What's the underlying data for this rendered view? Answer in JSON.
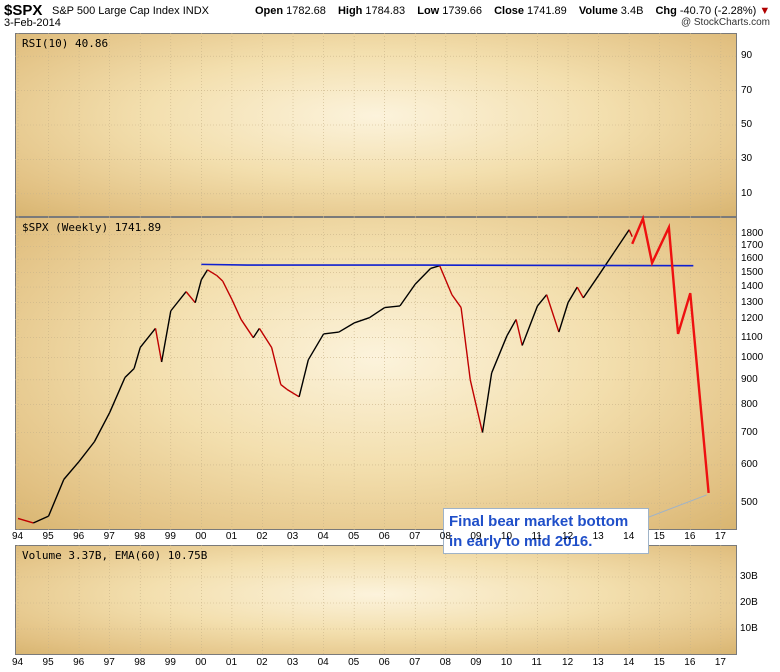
{
  "header": {
    "symbol": "$SPX",
    "name": "S&P 500 Large Cap Index",
    "exchange": "INDX",
    "date": "3-Feb-2014",
    "credit": "@ StockCharts.com",
    "quote": {
      "open_label": "Open",
      "open": "1782.68",
      "high_label": "High",
      "high": "1784.83",
      "low_label": "Low",
      "low": "1739.66",
      "close_label": "Close",
      "close": "1741.89",
      "volume_label": "Volume",
      "volume": "3.4B",
      "chg_label": "Chg",
      "chg": "-40.70 (-2.28%)",
      "chg_arrow": "▼"
    }
  },
  "panels": {
    "rsi_label": "RSI(10) 40.86",
    "price_label": "$SPX (Weekly) 1741.89",
    "volume_label": "Volume 3.37B, EMA(60) 10.75B"
  },
  "callout": {
    "line1": "Final bear market bottom",
    "line2": "in early to mid 2016."
  },
  "colors": {
    "price_line": "#000000",
    "price_down": "#c00000",
    "resistance": "#1020d0",
    "projection": "#ee1010",
    "callout_text": "#1f4fc9"
  },
  "chart_data": {
    "type": "line",
    "title": "$SPX (Weekly)",
    "xlabel": "",
    "ylabel": "",
    "x_ticks": [
      "94",
      "95",
      "96",
      "97",
      "98",
      "99",
      "00",
      "01",
      "02",
      "03",
      "04",
      "05",
      "06",
      "07",
      "08",
      "09",
      "10",
      "11",
      "12",
      "13",
      "14",
      "15",
      "16",
      "17"
    ],
    "y_ticks": [
      500,
      600,
      700,
      800,
      900,
      1000,
      1100,
      1200,
      1300,
      1400,
      1500,
      1600,
      1700,
      1800
    ],
    "ylim": [
      440,
      1900
    ],
    "xlim": [
      1994.0,
      2017.3
    ],
    "scale": "log",
    "rsi_ticks": [
      10,
      30,
      50,
      70,
      90
    ],
    "volume_ticks": [
      "10B",
      "20B",
      "30B"
    ],
    "series": [
      {
        "x": [
          1994.0,
          1994.5,
          1995.0,
          1995.5,
          1996.0,
          1996.5,
          1997.0,
          1997.5,
          1997.8,
          1998.0,
          1998.5,
          1998.7,
          1999.0,
          1999.5,
          1999.8,
          2000.0,
          2000.2,
          2000.5,
          2000.7,
          2001.0,
          2001.3,
          2001.7,
          2001.9,
          2002.3,
          2002.6,
          2002.8,
          2003.2,
          2003.5,
          2004.0,
          2004.5,
          2005.0,
          2005.5,
          2006.0,
          2006.5,
          2007.0,
          2007.5,
          2007.8,
          2008.2,
          2008.5,
          2008.8,
          2009.2,
          2009.5,
          2010.0,
          2010.3,
          2010.5,
          2011.0,
          2011.3,
          2011.7,
          2012.0,
          2012.3,
          2012.5,
          2013.0,
          2013.5,
          2014.0,
          2014.1
        ],
        "values": [
          465,
          455,
          470,
          560,
          610,
          670,
          770,
          910,
          950,
          1050,
          1150,
          980,
          1250,
          1370,
          1300,
          1450,
          1520,
          1480,
          1440,
          1320,
          1200,
          1100,
          1150,
          1050,
          880,
          860,
          830,
          990,
          1120,
          1130,
          1180,
          1210,
          1270,
          1280,
          1420,
          1530,
          1550,
          1350,
          1270,
          900,
          700,
          930,
          1110,
          1200,
          1060,
          1280,
          1350,
          1130,
          1300,
          1400,
          1330,
          1480,
          1650,
          1840,
          1780
        ]
      },
      {
        "name": "",
        "x": [
          2000.0,
          2001.5,
          2007.0,
          2016.1
        ],
        "values": [
          1560,
          1555,
          1555,
          1550
        ]
      },
      {
        "name": "",
        "x": [
          2014.1,
          2014.45,
          2014.75,
          2015.3,
          2015.6,
          2016.0,
          2016.6
        ],
        "values": [
          1720,
          1940,
          1570,
          1860,
          1120,
          1360,
          525
        ]
      }
    ]
  }
}
